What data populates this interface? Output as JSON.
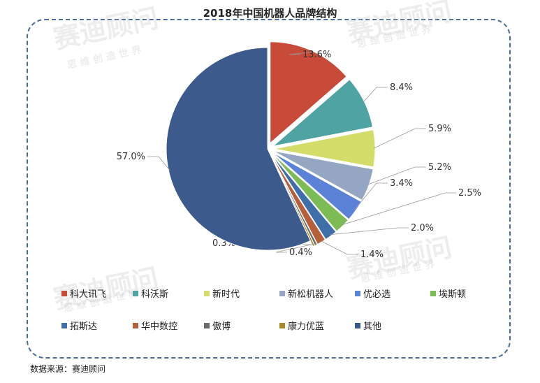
{
  "chart_data": {
    "type": "pie",
    "title": "2018年中国机器人品牌结构",
    "slices": [
      {
        "name": "科大讯飞",
        "value": 13.6,
        "label": "13.6%",
        "color": "#c84b3a",
        "exploded": true
      },
      {
        "name": "科沃斯",
        "value": 8.4,
        "label": "8.4%",
        "color": "#4fa3a3",
        "exploded": true
      },
      {
        "name": "新时代",
        "value": 5.9,
        "label": "5.9%",
        "color": "#d4dc6a",
        "exploded": true
      },
      {
        "name": "新松机器人",
        "value": 5.2,
        "label": "5.2%",
        "color": "#94a6c2",
        "exploded": true
      },
      {
        "name": "优必选",
        "value": 3.4,
        "label": "3.4%",
        "color": "#5b82d6",
        "exploded": true
      },
      {
        "name": "埃斯顿",
        "value": 2.5,
        "label": "2.5%",
        "color": "#7dbb54",
        "exploded": true
      },
      {
        "name": "拓斯达",
        "value": 2.0,
        "label": "2.0%",
        "color": "#3f6fa8",
        "exploded": true
      },
      {
        "name": "华中数控",
        "value": 1.4,
        "label": "1.4%",
        "color": "#b5603a",
        "exploded": true
      },
      {
        "name": "傲博",
        "value": 0.4,
        "label": "0.4%",
        "color": "#6a6a6a",
        "exploded": true
      },
      {
        "name": "康力优蓝",
        "value": 0.3,
        "label": "0.3%",
        "color": "#a68a27",
        "exploded": true
      },
      {
        "name": "其他",
        "value": 57.0,
        "label": "57.0%",
        "color": "#3d5a8c",
        "exploded": false
      }
    ],
    "legend_position": "bottom"
  },
  "watermark": {
    "brand": "赛迪顾问",
    "slogan": "思 维 创 造 世 界"
  },
  "source": "数据来源：赛迪顾问"
}
